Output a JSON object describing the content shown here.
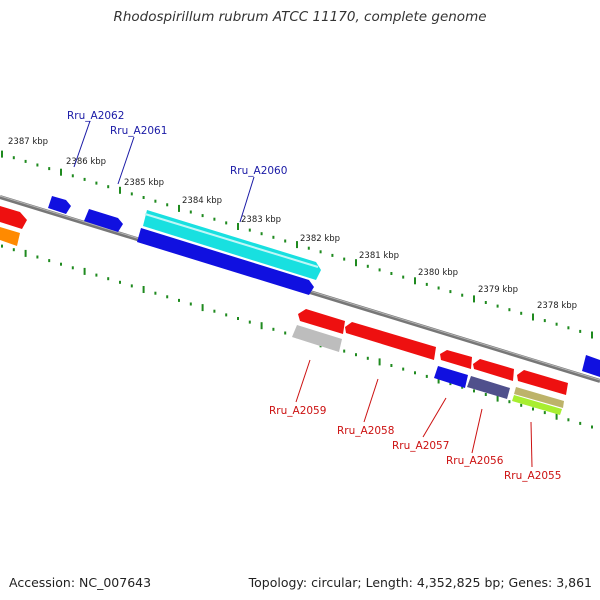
{
  "title": "Rhodospirillum rubrum ATCC 11170, complete genome",
  "footer": {
    "accession": "Accession: NC_007643",
    "summary": "Topology: circular; Length: 4,352,825 bp; Genes: 3,861"
  },
  "colors": {
    "backbone": "#777777",
    "tick": "#1f8a1f",
    "forward_label": "#1a1aa6",
    "reverse_label": "#cc1111",
    "blue_gene": "#1010e0",
    "cyan_gene": "#18e0e0",
    "red_gene": "#ee1010",
    "grey_gene": "#bdbdbd",
    "orange_gene": "#ff8a00",
    "navy_gene": "#50508c",
    "olive_gene": "#bdb36a",
    "lime_gene": "#a8ee30"
  },
  "kbp_markers": [
    "2387 kbp",
    "2386 kbp",
    "2385 kbp",
    "2384 kbp",
    "2383 kbp",
    "2382 kbp",
    "2381 kbp",
    "2380 kbp",
    "2379 kbp",
    "2378 kbp"
  ],
  "gene_labels": {
    "forward": [
      "Rru_A2062",
      "Rru_A2061",
      "Rru_A2060"
    ],
    "reverse": [
      "Rru_A2059",
      "Rru_A2058",
      "Rru_A2057",
      "Rru_A2056",
      "Rru_A2055"
    ]
  }
}
